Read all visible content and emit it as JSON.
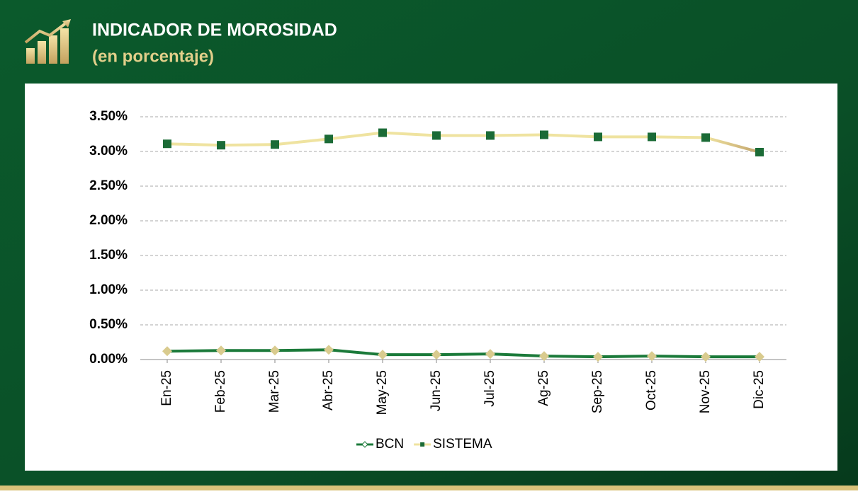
{
  "chart_data": {
    "type": "line",
    "title": "INDICADOR DE MOROSIDAD",
    "subtitle": "(en porcentaje)",
    "categories": [
      "En-25",
      "Feb-25",
      "Mar-25",
      "Abr-25",
      "May-25",
      "Jun-25",
      "Jul-25",
      "Ag-25",
      "Sep-25",
      "Oct-25",
      "Nov-25",
      "Dic-25"
    ],
    "series": [
      {
        "name": "BCN",
        "color": "#1b7a3a",
        "marker": "diamond",
        "marker_color": "#d9cb8e",
        "values": [
          0.12,
          0.13,
          0.13,
          0.14,
          0.07,
          0.07,
          0.08,
          0.05,
          0.04,
          0.05,
          0.04,
          0.04
        ]
      },
      {
        "name": "SISTEMA",
        "color": "#efe3a0",
        "color_end": "#c2a36b",
        "marker": "square",
        "marker_color": "#1b6b36",
        "values": [
          3.11,
          3.09,
          3.1,
          3.18,
          3.27,
          3.23,
          3.23,
          3.24,
          3.21,
          3.21,
          3.2,
          2.99
        ]
      }
    ],
    "ylim": [
      0,
      3.5
    ],
    "yticks": [
      {
        "value": 0,
        "label": "0.00%"
      },
      {
        "value": 0.5,
        "label": "0.50%"
      },
      {
        "value": 1,
        "label": "1.00%"
      },
      {
        "value": 1.5,
        "label": "1.50%"
      },
      {
        "value": 2,
        "label": "2.00%"
      },
      {
        "value": 2.5,
        "label": "2.50%"
      },
      {
        "value": 3,
        "label": "3.00%"
      },
      {
        "value": 3.5,
        "label": "3.50%"
      }
    ],
    "grid": true,
    "legend": "bottom"
  }
}
